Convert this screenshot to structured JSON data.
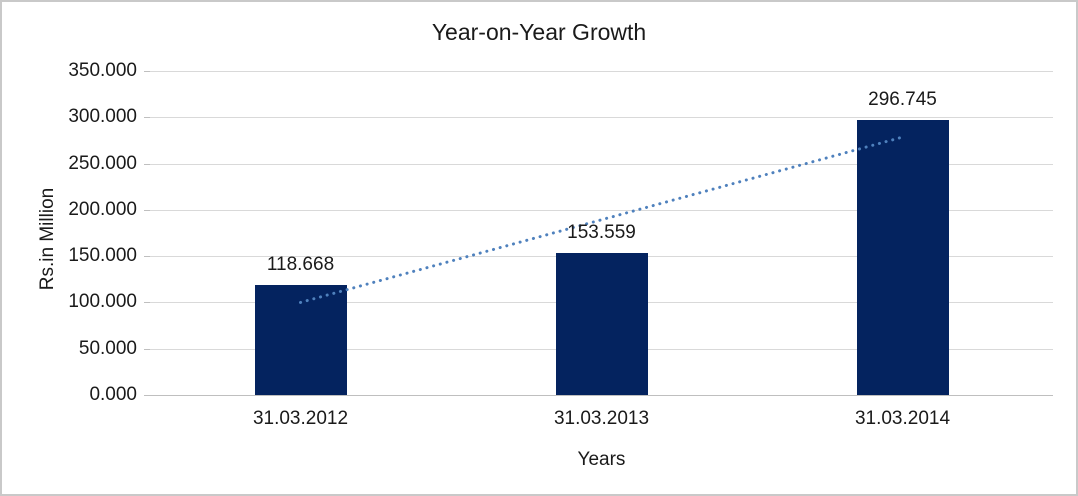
{
  "chart_data": {
    "type": "bar",
    "title": "Year-on-Year Growth",
    "xlabel": "Years",
    "ylabel": "Rs.in Million",
    "categories": [
      "31.03.2012",
      "31.03.2013",
      "31.03.2014"
    ],
    "values": [
      118.668,
      153.559,
      296.745
    ],
    "data_labels": [
      "118.668",
      "153.559",
      "296.745"
    ],
    "y_ticks": [
      {
        "value": 350,
        "label": "350.000"
      },
      {
        "value": 300,
        "label": "300.000"
      },
      {
        "value": 250,
        "label": "250.000"
      },
      {
        "value": 200,
        "label": "200.000"
      },
      {
        "value": 150,
        "label": "150.000"
      },
      {
        "value": 100,
        "label": "100.000"
      },
      {
        "value": 50,
        "label": "50.000"
      },
      {
        "value": 0,
        "label": "0.000"
      }
    ],
    "ylim": [
      0,
      350
    ],
    "grid": true,
    "legend": "none",
    "trendline": {
      "type": "linear",
      "style": "dotted",
      "start": {
        "category_index": 0,
        "value": 100.0
      },
      "end": {
        "category_index": 2,
        "value": 278.6
      }
    },
    "colors": {
      "bar": "#04235f",
      "trendline": "#4f81bd",
      "gridline": "#d9d9d9",
      "axis": "#bfbfbf",
      "text": "#1a1a1a",
      "frame_border": "#c9c9c9",
      "background": "#ffffff"
    }
  }
}
